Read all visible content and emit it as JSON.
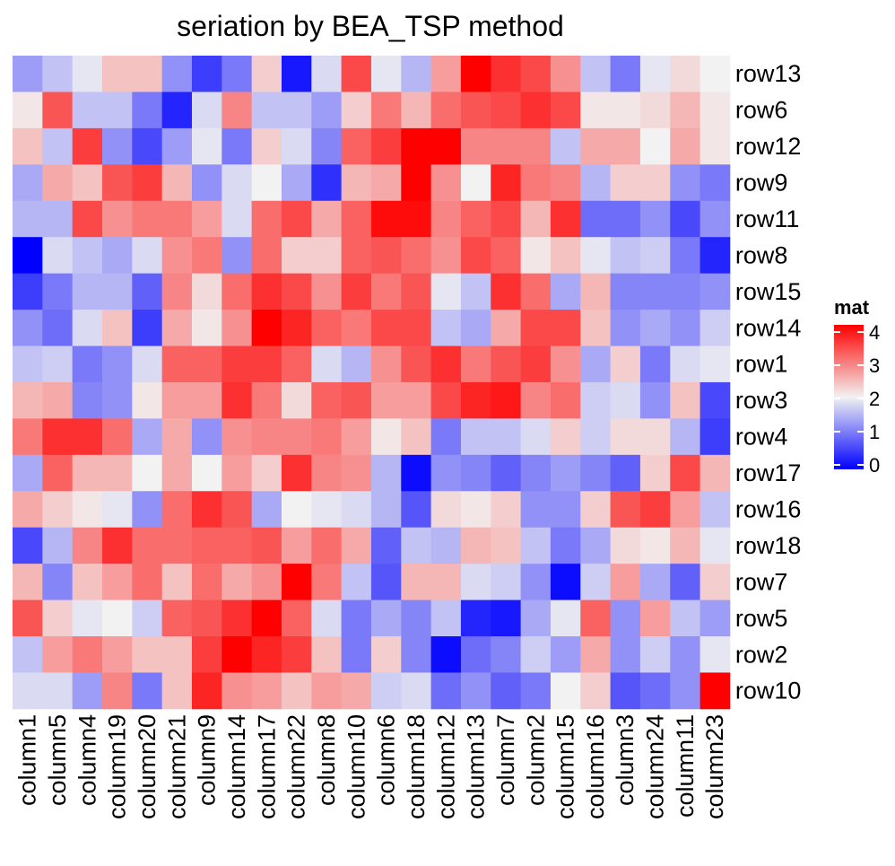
{
  "chart_data": {
    "type": "heatmap",
    "title": "seriation by BEA_TSP method",
    "legend": {
      "title": "mat",
      "min": 0,
      "max": 4,
      "ticks": [
        0,
        1,
        2,
        3,
        4
      ],
      "placement": "right"
    },
    "color_scale": {
      "low": "#0000FF",
      "mid": "#F2F2F2",
      "high": "#FF0000",
      "mid_value": 2
    },
    "columns": [
      "column1",
      "column5",
      "column4",
      "column19",
      "column20",
      "column21",
      "column9",
      "column14",
      "column17",
      "column22",
      "column8",
      "column10",
      "column6",
      "column18",
      "column12",
      "column13",
      "column7",
      "column2",
      "column15",
      "column16",
      "column3",
      "column24",
      "column11",
      "column23"
    ],
    "rows": [
      "row13",
      "row6",
      "row12",
      "row9",
      "row11",
      "row8",
      "row15",
      "row14",
      "row1",
      "row3",
      "row4",
      "row17",
      "row16",
      "row18",
      "row7",
      "row5",
      "row2",
      "row10"
    ],
    "values": [
      [
        1.3,
        1.6,
        1.9,
        2.4,
        2.4,
        1.2,
        0.5,
        1.0,
        2.3,
        0.2,
        1.8,
        3.4,
        1.9,
        1.5,
        2.7,
        4.0,
        3.6,
        3.4,
        2.8,
        1.6,
        1.0,
        1.9,
        2.2,
        2.0
      ],
      [
        2.1,
        3.3,
        1.6,
        1.6,
        1.0,
        0.3,
        1.8,
        2.9,
        1.6,
        1.6,
        1.3,
        2.3,
        3.0,
        2.5,
        3.1,
        3.3,
        3.4,
        3.6,
        3.4,
        2.1,
        2.1,
        2.2,
        2.5,
        2.1
      ],
      [
        2.4,
        1.6,
        3.5,
        1.2,
        0.6,
        1.3,
        1.9,
        1.0,
        2.3,
        1.8,
        1.1,
        3.2,
        3.5,
        4.0,
        4.0,
        2.9,
        2.9,
        2.9,
        1.6,
        2.6,
        2.6,
        2.0,
        2.6,
        2.1
      ],
      [
        1.4,
        2.6,
        2.4,
        3.3,
        3.5,
        2.5,
        1.2,
        1.8,
        2.0,
        1.4,
        0.4,
        2.5,
        2.6,
        4.0,
        2.8,
        2.0,
        3.7,
        3.0,
        2.9,
        1.5,
        2.3,
        2.3,
        1.2,
        1.0
      ],
      [
        1.5,
        1.5,
        3.4,
        2.8,
        3.0,
        3.0,
        2.7,
        1.8,
        3.1,
        3.4,
        2.6,
        3.2,
        3.9,
        3.9,
        2.9,
        3.2,
        3.4,
        2.5,
        3.6,
        0.9,
        0.9,
        1.2,
        0.6,
        1.2
      ],
      [
        0.0,
        1.8,
        1.6,
        1.4,
        1.8,
        2.8,
        3.0,
        1.2,
        3.1,
        2.3,
        2.3,
        3.2,
        3.3,
        3.1,
        2.8,
        3.4,
        3.2,
        2.1,
        2.4,
        1.9,
        1.6,
        1.7,
        1.0,
        0.3
      ],
      [
        0.5,
        1.0,
        1.5,
        1.5,
        0.8,
        2.9,
        2.2,
        3.1,
        3.6,
        3.4,
        2.8,
        3.5,
        3.0,
        3.3,
        1.9,
        1.6,
        3.6,
        3.1,
        1.4,
        2.5,
        1.1,
        1.1,
        1.1,
        1.2
      ],
      [
        1.2,
        0.9,
        1.8,
        2.4,
        0.5,
        2.6,
        2.1,
        2.8,
        4.0,
        3.7,
        3.2,
        3.0,
        3.4,
        3.4,
        1.6,
        1.4,
        2.6,
        3.4,
        3.4,
        2.4,
        1.2,
        1.4,
        1.2,
        1.7
      ],
      [
        1.6,
        1.7,
        1.0,
        1.2,
        1.8,
        3.2,
        3.2,
        3.5,
        3.5,
        3.2,
        1.8,
        1.5,
        2.8,
        3.3,
        3.6,
        3.0,
        3.3,
        3.5,
        2.8,
        1.4,
        2.3,
        1.0,
        1.8,
        1.9
      ],
      [
        2.5,
        2.6,
        1.1,
        1.2,
        2.1,
        2.7,
        2.7,
        3.6,
        3.0,
        2.2,
        3.2,
        3.3,
        2.7,
        2.7,
        3.4,
        3.7,
        3.8,
        2.9,
        3.1,
        1.7,
        1.8,
        1.2,
        2.4,
        0.6
      ],
      [
        3.0,
        3.6,
        3.6,
        3.1,
        1.4,
        2.6,
        1.2,
        2.8,
        2.9,
        2.9,
        3.0,
        2.7,
        2.1,
        2.4,
        1.0,
        1.6,
        1.6,
        1.8,
        2.3,
        1.7,
        2.2,
        2.2,
        1.5,
        0.5
      ],
      [
        1.4,
        3.2,
        2.5,
        2.5,
        2.0,
        2.6,
        2.0,
        2.7,
        2.3,
        3.6,
        2.9,
        2.8,
        1.5,
        0.1,
        1.2,
        1.1,
        0.8,
        1.1,
        1.3,
        1.1,
        0.8,
        2.3,
        3.4,
        2.5
      ],
      [
        2.6,
        2.3,
        2.1,
        1.9,
        1.2,
        3.1,
        3.6,
        3.3,
        1.4,
        2.0,
        1.9,
        1.8,
        1.5,
        0.7,
        2.2,
        2.1,
        2.3,
        1.2,
        1.2,
        2.3,
        3.3,
        3.5,
        2.7,
        1.6
      ],
      [
        0.6,
        1.5,
        2.9,
        3.6,
        3.1,
        3.1,
        3.2,
        3.2,
        3.3,
        2.7,
        3.1,
        2.6,
        0.8,
        1.6,
        1.5,
        2.5,
        2.4,
        1.6,
        1.0,
        1.4,
        2.2,
        2.1,
        2.5,
        1.9
      ],
      [
        2.5,
        1.1,
        2.4,
        2.7,
        3.1,
        2.4,
        3.1,
        2.6,
        2.8,
        4.0,
        3.0,
        1.6,
        0.7,
        2.5,
        2.5,
        1.8,
        1.7,
        1.2,
        0.1,
        1.7,
        2.7,
        1.4,
        0.8,
        2.3
      ],
      [
        3.3,
        2.3,
        1.9,
        2.0,
        1.7,
        3.2,
        3.3,
        3.6,
        4.0,
        3.2,
        1.8,
        1.0,
        1.4,
        1.1,
        1.6,
        0.3,
        0.2,
        1.4,
        1.9,
        3.2,
        1.2,
        2.7,
        1.6,
        1.3
      ],
      [
        1.6,
        2.7,
        3.0,
        2.7,
        2.4,
        2.4,
        3.5,
        4.0,
        3.7,
        3.5,
        2.4,
        1.0,
        2.3,
        1.1,
        0.1,
        0.9,
        1.1,
        1.7,
        1.3,
        2.6,
        1.2,
        1.7,
        1.2,
        1.9
      ],
      [
        1.8,
        1.8,
        1.3,
        2.9,
        1.0,
        2.4,
        3.7,
        2.8,
        2.7,
        2.4,
        2.7,
        2.6,
        1.7,
        1.8,
        0.9,
        1.2,
        0.8,
        1.0,
        2.0,
        2.3,
        0.7,
        0.9,
        1.2,
        4.0
      ]
    ]
  }
}
